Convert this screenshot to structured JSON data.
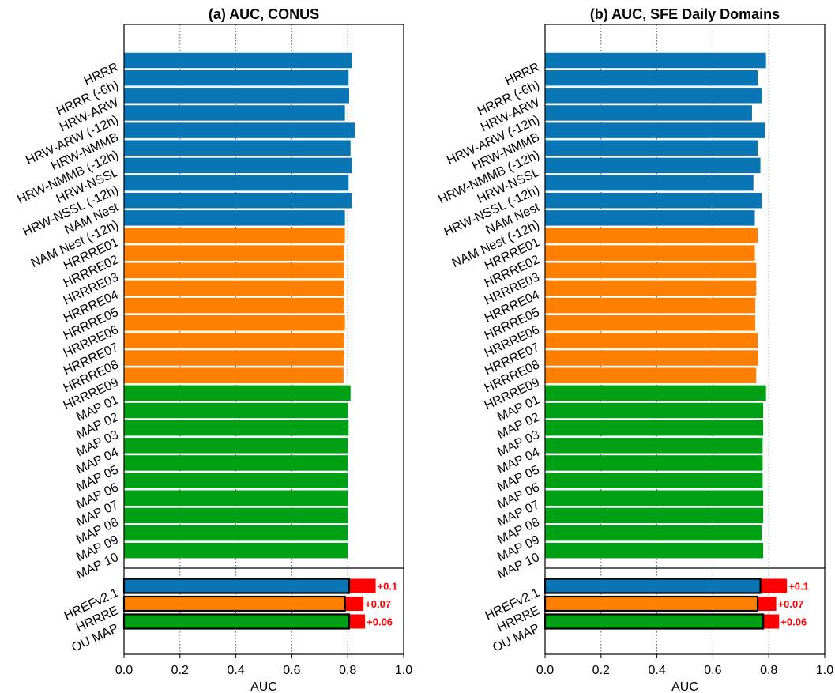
{
  "colors": {
    "model": "#0a75b5",
    "hrrre": "#ff7f00",
    "map": "#00a014",
    "delta": "#ff0000",
    "grid": "#555555"
  },
  "chart_data": [
    {
      "type": "bar",
      "orientation": "horizontal",
      "title": "(a) AUC, CONUS",
      "xlabel": "AUC",
      "xlim": [
        0.0,
        1.0
      ],
      "xticks": [
        "0.0",
        "0.2",
        "0.4",
        "0.6",
        "0.8",
        "1.0"
      ],
      "grid": "vertical dotted at 0.2, 0.4, 0.6, 0.8",
      "members": {
        "categories": [
          "HRRR",
          "HRRR (-6h)",
          "HRW-ARW",
          "HRW-ARW (-12h)",
          "HRW-NMMB",
          "HRW-NMMB (-12h)",
          "HRW-NSSL",
          "HRW-NSSL (-12h)",
          "NAM Nest",
          "NAM Nest (-12h)",
          "HRRRE01",
          "HRRRE02",
          "HRRRE03",
          "HRRRE04",
          "HRRRE05",
          "HRRRE06",
          "HRRRE07",
          "HRRRE08",
          "HRRRE09",
          "MAP 01",
          "MAP 02",
          "MAP 03",
          "MAP 04",
          "MAP 05",
          "MAP 06",
          "MAP 07",
          "MAP 08",
          "MAP 09",
          "MAP 10"
        ],
        "values": [
          0.815,
          0.803,
          0.805,
          0.79,
          0.826,
          0.81,
          0.815,
          0.803,
          0.815,
          0.79,
          0.79,
          0.787,
          0.787,
          0.787,
          0.787,
          0.79,
          0.787,
          0.787,
          0.785,
          0.81,
          0.8,
          0.803,
          0.8,
          0.8,
          0.8,
          0.8,
          0.8,
          0.8,
          0.8
        ],
        "groups": [
          "model",
          "model",
          "model",
          "model",
          "model",
          "model",
          "model",
          "model",
          "model",
          "model",
          "hrrre",
          "hrrre",
          "hrrre",
          "hrrre",
          "hrrre",
          "hrrre",
          "hrrre",
          "hrrre",
          "hrrre",
          "map",
          "map",
          "map",
          "map",
          "map",
          "map",
          "map",
          "map",
          "map",
          "map"
        ]
      },
      "ensembles": {
        "categories": [
          "HREFv2.1",
          "HRRRE",
          "OU MAP"
        ],
        "values": [
          0.805,
          0.79,
          0.805
        ],
        "deltas": [
          0.1,
          0.07,
          0.06
        ],
        "delta_labels": [
          "+0.1",
          "+0.07",
          "+0.06"
        ],
        "groups": [
          "model",
          "hrrre",
          "map"
        ]
      }
    },
    {
      "type": "bar",
      "orientation": "horizontal",
      "title": "(b) AUC, SFE Daily Domains",
      "xlabel": "AUC",
      "xlim": [
        0.0,
        1.0
      ],
      "xticks": [
        "0.0",
        "0.2",
        "0.4",
        "0.6",
        "0.8",
        "1.0"
      ],
      "grid": "vertical dotted at 0.2, 0.4, 0.6, 0.8",
      "members": {
        "categories": [
          "HRRR",
          "HRRR (-6h)",
          "HRW-ARW",
          "HRW-ARW (-12h)",
          "HRW-NMMB",
          "HRW-NMMB (-12h)",
          "HRW-NSSL",
          "HRW-NSSL (-12h)",
          "NAM Nest",
          "NAM Nest (-12h)",
          "HRRRE01",
          "HRRRE02",
          "HRRRE03",
          "HRRRE04",
          "HRRRE05",
          "HRRRE06",
          "HRRRE07",
          "HRRRE08",
          "HRRRE09",
          "MAP 01",
          "MAP 02",
          "MAP 03",
          "MAP 04",
          "MAP 05",
          "MAP 06",
          "MAP 07",
          "MAP 08",
          "MAP 09",
          "MAP 10"
        ],
        "values": [
          0.79,
          0.76,
          0.775,
          0.74,
          0.787,
          0.76,
          0.77,
          0.745,
          0.775,
          0.75,
          0.76,
          0.75,
          0.755,
          0.755,
          0.752,
          0.752,
          0.76,
          0.762,
          0.755,
          0.79,
          0.78,
          0.78,
          0.778,
          0.778,
          0.778,
          0.78,
          0.78,
          0.775,
          0.78
        ],
        "groups": [
          "model",
          "model",
          "model",
          "model",
          "model",
          "model",
          "model",
          "model",
          "model",
          "model",
          "hrrre",
          "hrrre",
          "hrrre",
          "hrrre",
          "hrrre",
          "hrrre",
          "hrrre",
          "hrrre",
          "hrrre",
          "map",
          "map",
          "map",
          "map",
          "map",
          "map",
          "map",
          "map",
          "map",
          "map"
        ]
      },
      "ensembles": {
        "categories": [
          "HREFv2.1",
          "HRRRE",
          "OU MAP"
        ],
        "values": [
          0.77,
          0.76,
          0.78
        ],
        "deltas": [
          0.1,
          0.07,
          0.06
        ],
        "delta_labels": [
          "+0.1",
          "+0.07",
          "+0.06"
        ],
        "groups": [
          "model",
          "hrrre",
          "map"
        ]
      }
    }
  ]
}
